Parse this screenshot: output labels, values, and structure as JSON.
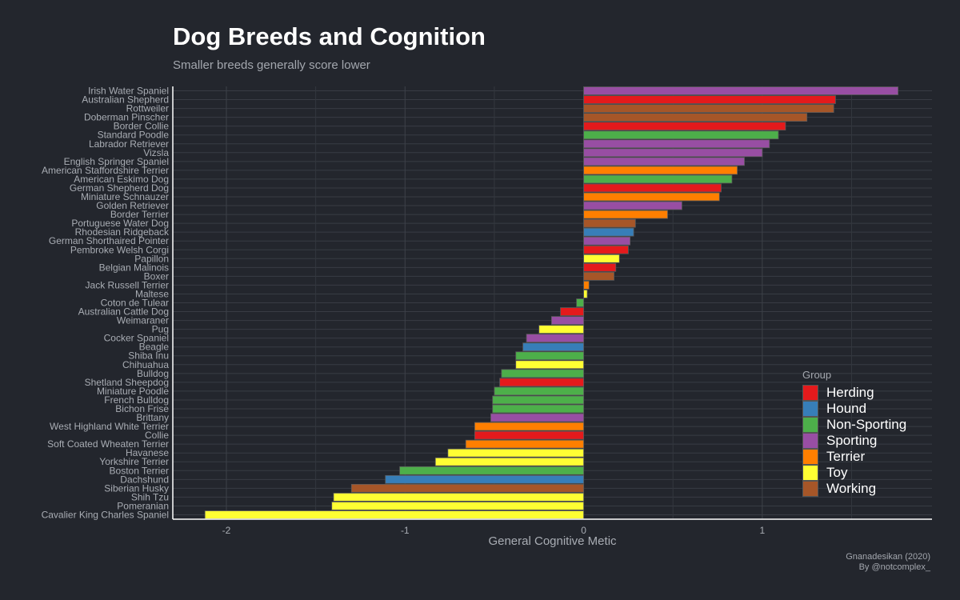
{
  "chart_data": {
    "type": "bar",
    "orientation": "horizontal",
    "title": "Dog Breeds and Cognition",
    "subtitle": "Smaller breeds generally score lower",
    "xlabel": "General Cognitive Metic",
    "ylabel": "",
    "xlim": [
      -2.3,
      1.95
    ],
    "xticks": [
      -2,
      -1,
      0,
      1
    ],
    "grid": true,
    "legend_title": "Group",
    "legend_position": "right",
    "groups": [
      {
        "name": "Herding",
        "color": "#e41a1c"
      },
      {
        "name": "Hound",
        "color": "#377eb8"
      },
      {
        "name": "Non-Sporting",
        "color": "#4daf4a"
      },
      {
        "name": "Sporting",
        "color": "#984ea3"
      },
      {
        "name": "Terrier",
        "color": "#ff7f00"
      },
      {
        "name": "Toy",
        "color": "#ffff33"
      },
      {
        "name": "Working",
        "color": "#a65628"
      }
    ],
    "breeds": [
      {
        "name": "Irish Water Spaniel",
        "value": 1.76,
        "group": "Sporting"
      },
      {
        "name": "Australian Shepherd",
        "value": 1.41,
        "group": "Herding"
      },
      {
        "name": "Rottweiler",
        "value": 1.4,
        "group": "Working"
      },
      {
        "name": "Doberman Pinscher",
        "value": 1.25,
        "group": "Working"
      },
      {
        "name": "Border Collie",
        "value": 1.13,
        "group": "Herding"
      },
      {
        "name": "Standard Poodle",
        "value": 1.09,
        "group": "Non-Sporting"
      },
      {
        "name": "Labrador Retriever",
        "value": 1.04,
        "group": "Sporting"
      },
      {
        "name": "Vizsla",
        "value": 1.0,
        "group": "Sporting"
      },
      {
        "name": "English Springer Spaniel",
        "value": 0.9,
        "group": "Sporting"
      },
      {
        "name": "American Staffordshire Terrier",
        "value": 0.86,
        "group": "Terrier"
      },
      {
        "name": "American Eskimo Dog",
        "value": 0.83,
        "group": "Non-Sporting"
      },
      {
        "name": "German Shepherd Dog",
        "value": 0.77,
        "group": "Herding"
      },
      {
        "name": "Miniature Schnauzer",
        "value": 0.76,
        "group": "Terrier"
      },
      {
        "name": "Golden Retriever",
        "value": 0.55,
        "group": "Sporting"
      },
      {
        "name": "Border Terrier",
        "value": 0.47,
        "group": "Terrier"
      },
      {
        "name": "Portuguese Water Dog",
        "value": 0.29,
        "group": "Working"
      },
      {
        "name": "Rhodesian Ridgeback",
        "value": 0.28,
        "group": "Hound"
      },
      {
        "name": "German Shorthaired Pointer",
        "value": 0.26,
        "group": "Sporting"
      },
      {
        "name": "Pembroke Welsh Corgi",
        "value": 0.25,
        "group": "Herding"
      },
      {
        "name": "Papillon",
        "value": 0.2,
        "group": "Toy"
      },
      {
        "name": "Belgian Malinois",
        "value": 0.18,
        "group": "Herding"
      },
      {
        "name": "Boxer",
        "value": 0.17,
        "group": "Working"
      },
      {
        "name": "Jack Russell Terrier",
        "value": 0.03,
        "group": "Terrier"
      },
      {
        "name": "Maltese",
        "value": 0.02,
        "group": "Toy"
      },
      {
        "name": "Coton de Tulear",
        "value": -0.04,
        "group": "Non-Sporting"
      },
      {
        "name": "Australian Cattle Dog",
        "value": -0.13,
        "group": "Herding"
      },
      {
        "name": "Weimaraner",
        "value": -0.18,
        "group": "Sporting"
      },
      {
        "name": "Pug",
        "value": -0.25,
        "group": "Toy"
      },
      {
        "name": "Cocker Spaniel",
        "value": -0.32,
        "group": "Sporting"
      },
      {
        "name": "Beagle",
        "value": -0.34,
        "group": "Hound"
      },
      {
        "name": "Shiba Inu",
        "value": -0.38,
        "group": "Non-Sporting"
      },
      {
        "name": "Chihuahua",
        "value": -0.38,
        "group": "Toy"
      },
      {
        "name": "Bulldog",
        "value": -0.46,
        "group": "Non-Sporting"
      },
      {
        "name": "Shetland Sheepdog",
        "value": -0.47,
        "group": "Herding"
      },
      {
        "name": "Miniature Poodle",
        "value": -0.5,
        "group": "Non-Sporting"
      },
      {
        "name": "French Bulldog",
        "value": -0.51,
        "group": "Non-Sporting"
      },
      {
        "name": "Bichon Frise",
        "value": -0.51,
        "group": "Non-Sporting"
      },
      {
        "name": "Brittany",
        "value": -0.52,
        "group": "Sporting"
      },
      {
        "name": "West Highland White Terrier",
        "value": -0.61,
        "group": "Terrier"
      },
      {
        "name": "Collie",
        "value": -0.61,
        "group": "Herding"
      },
      {
        "name": "Soft Coated Wheaten Terrier",
        "value": -0.66,
        "group": "Terrier"
      },
      {
        "name": "Havanese",
        "value": -0.76,
        "group": "Toy"
      },
      {
        "name": "Yorkshire Terrier",
        "value": -0.83,
        "group": "Toy"
      },
      {
        "name": "Boston Terrier",
        "value": -1.03,
        "group": "Non-Sporting"
      },
      {
        "name": "Dachshund",
        "value": -1.11,
        "group": "Hound"
      },
      {
        "name": "Siberian Husky",
        "value": -1.3,
        "group": "Working"
      },
      {
        "name": "Shih Tzu",
        "value": -1.4,
        "group": "Toy"
      },
      {
        "name": "Pomeranian",
        "value": -1.41,
        "group": "Toy"
      },
      {
        "name": "Cavalier King Charles Spaniel",
        "value": -2.12,
        "group": "Toy"
      }
    ]
  },
  "caption": {
    "line1": "Gnanadesikan (2020)",
    "line2": "By @notcomplex_"
  }
}
